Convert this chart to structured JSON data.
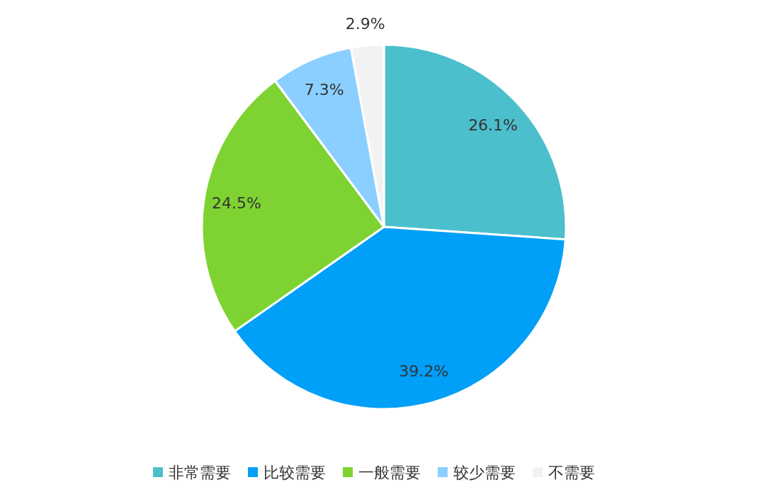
{
  "chart_data": {
    "type": "pie",
    "categories": [
      "非常需要",
      "比较需要",
      "一般需要",
      "较少需要",
      "不需要"
    ],
    "values": [
      26.1,
      39.2,
      24.5,
      7.3,
      2.9
    ],
    "value_labels": [
      "26.1%",
      "39.2%",
      "24.5%",
      "7.3%",
      "2.9%"
    ],
    "colors": [
      "#4cbfcc",
      "#009ff8",
      "#7ed332",
      "#8acfff",
      "#f2f2f2"
    ],
    "legend": "bottom"
  }
}
